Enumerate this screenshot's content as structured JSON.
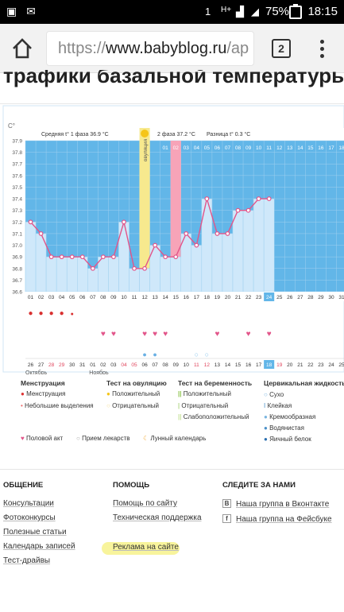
{
  "statusbar": {
    "time": "18:15",
    "battery": "75%",
    "network": "H+",
    "sim": "1"
  },
  "browser": {
    "url_scheme": "https://",
    "url_host": "www.babyblog.ru",
    "url_path": "/ap",
    "tabs_count": "2"
  },
  "page": {
    "title": "трафики базальной температуры"
  },
  "chart_data": {
    "type": "line",
    "title": "",
    "ylabel": "C°",
    "ylim": [
      36.6,
      37.9
    ],
    "yticks": [
      "37.9",
      "37.8",
      "37.7",
      "37.6",
      "37.5",
      "37.4",
      "37.3",
      "37.2",
      "37.1",
      "37.0",
      "36.9",
      "36.8",
      "36.7",
      "36.6"
    ],
    "phase1": "Средняя t° 1 фаза  36.9 °C",
    "phase2": "2 фаза  37.2 °C",
    "diff": "Разница t°  0.3 °C",
    "ovulation": "овуляция",
    "cycle_days": [
      "01",
      "02",
      "03",
      "04",
      "05",
      "06",
      "07",
      "08",
      "09",
      "10",
      "11",
      "12",
      "13",
      "14",
      "15",
      "16",
      "17",
      "18",
      "19",
      "20",
      "21",
      "22",
      "23",
      "24",
      "25",
      "26",
      "27",
      "28",
      "29",
      "30",
      "31"
    ],
    "dates": [
      "26",
      "27",
      "28",
      "29",
      "30",
      "31",
      "01",
      "02",
      "03",
      "04",
      "05",
      "06",
      "07",
      "08",
      "09",
      "10",
      "11",
      "12",
      "13",
      "14",
      "15",
      "16",
      "17",
      "18",
      "19",
      "20",
      "21",
      "22",
      "23",
      "24",
      "25"
    ],
    "temperatures": [
      37.2,
      37.1,
      36.9,
      36.9,
      36.9,
      36.9,
      36.8,
      36.9,
      36.9,
      37.2,
      36.8,
      36.8,
      37.0,
      36.9,
      36.9,
      37.1,
      37.0,
      37.4,
      37.1,
      37.1,
      37.3,
      37.3,
      37.4,
      37.4
    ],
    "months": [
      "Октябрь",
      "Ноябрь"
    ],
    "colors": {
      "bar": "#cfe8fa",
      "bg": "#62b6e8",
      "ovulation": "#f7e98e",
      "today": "#f7a4b8",
      "line": "#e2558a"
    }
  },
  "legend": {
    "menstruation": {
      "title": "Менструация",
      "items": [
        "Менструация",
        "Небольшие выделения"
      ]
    },
    "ovulation_test": {
      "title": "Тест на овуляцию",
      "items": [
        "Положительный",
        "Отрицательный"
      ]
    },
    "pregnancy_test": {
      "title": "Тест на беременность",
      "items": [
        "Положительный",
        "Отрицательный",
        "Слабоположительный"
      ]
    },
    "cervical": {
      "title": "Цервикальная жидкость",
      "items": [
        "Сухо",
        "Клейкая",
        "Кремообразная",
        "Водянистая",
        "Яичный белок"
      ]
    },
    "extra": [
      "Половой акт",
      "Прием лекарств",
      "Лунный календарь"
    ]
  },
  "footer": {
    "col1": {
      "title": "ОБЩЕНИЕ",
      "links": [
        "Консультации",
        "Фотоконкурсы",
        "Полезные статьи",
        "Календарь записей",
        "Тест-драйвы"
      ]
    },
    "col2": {
      "title": "ПОМОЩЬ",
      "links": [
        "Помощь по сайту",
        "Техническая поддержка",
        "Реклама на сайте"
      ]
    },
    "col3": {
      "title": "СЛЕДИТЕ ЗА НАМИ",
      "links": [
        "Наша группа в Вконтакте",
        "Наша группа на Фейсбуке"
      ],
      "icons": [
        "В",
        "f"
      ]
    }
  }
}
